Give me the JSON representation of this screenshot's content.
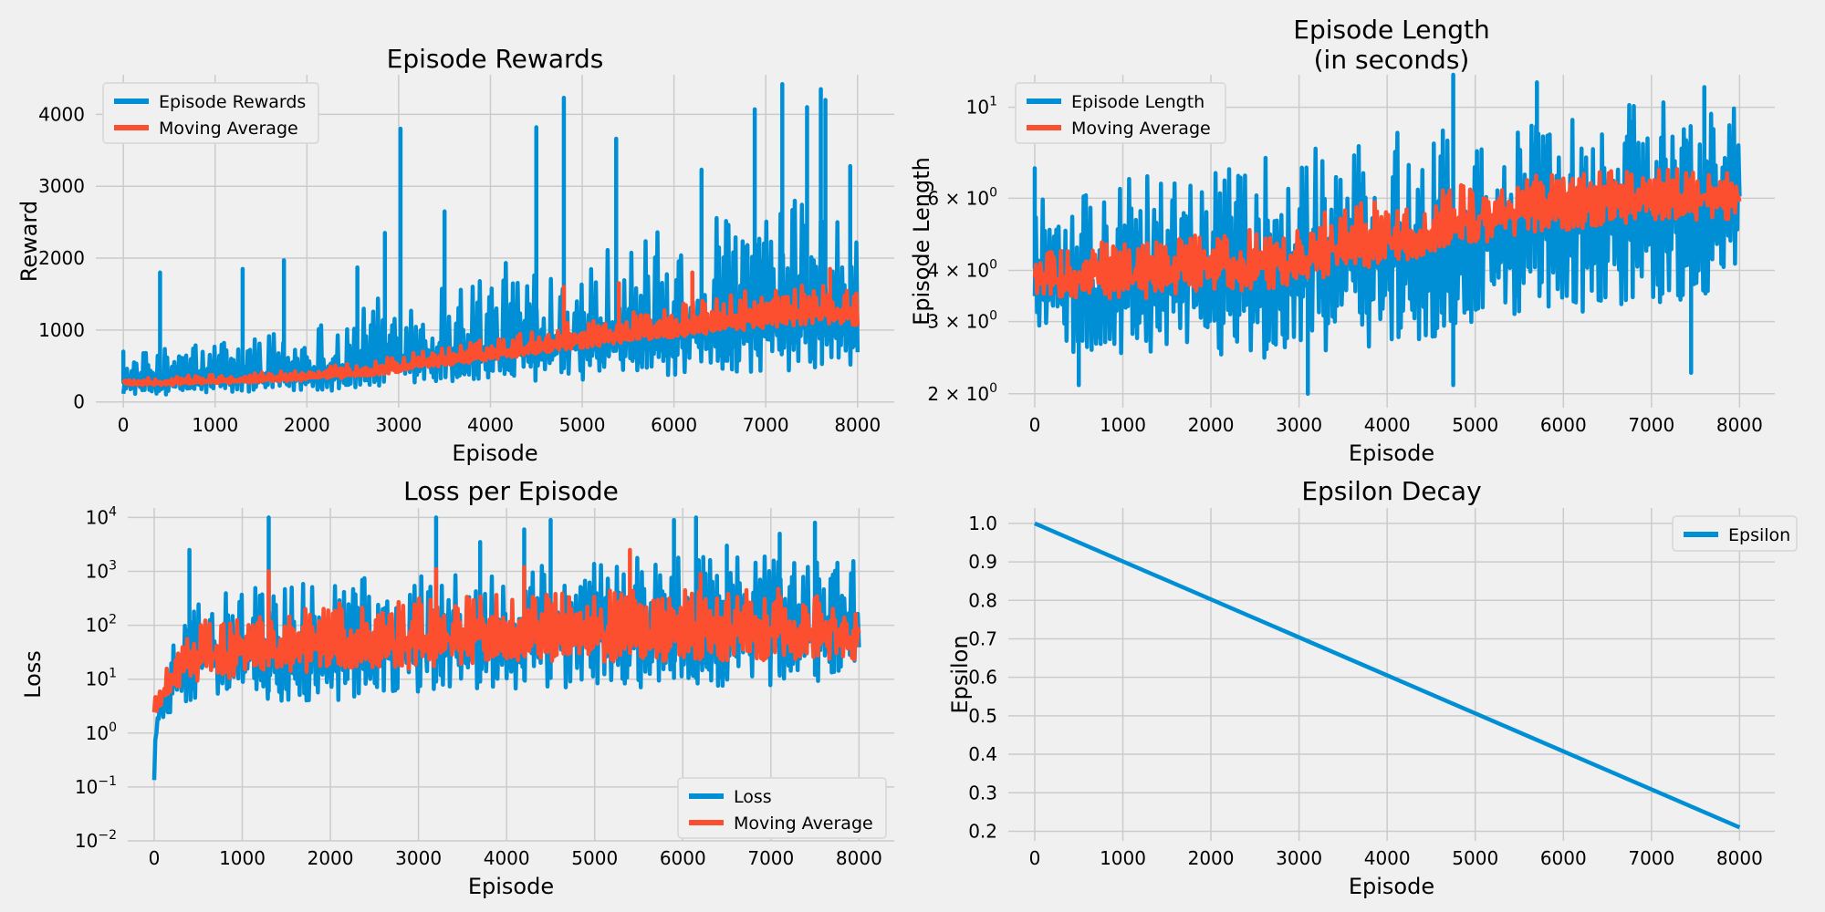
{
  "chart_data": [
    {
      "id": "rewards",
      "type": "line",
      "title": "Episode Rewards",
      "xlabel": "Episode",
      "ylabel": "Reward",
      "xlim": [
        -300,
        8400
      ],
      "ylim": [
        -80,
        4550
      ],
      "yscale": "linear",
      "xticks": [
        0,
        1000,
        2000,
        3000,
        4000,
        5000,
        6000,
        7000,
        8000
      ],
      "xtick_labels": [
        "0",
        "1000",
        "2000",
        "3000",
        "4000",
        "5000",
        "6000",
        "7000",
        "8000"
      ],
      "yticks": [
        0,
        1000,
        2000,
        3000,
        4000
      ],
      "ytick_labels": [
        "0",
        "1000",
        "2000",
        "3000",
        "4000"
      ],
      "legend_position": "top-left",
      "series": [
        {
          "name": "Episode Rewards",
          "color": "#008fd5",
          "x": [
            0,
            400,
            800,
            1200,
            1600,
            2000,
            2400,
            2800,
            3200,
            3600,
            4000,
            4400,
            4800,
            5200,
            5600,
            6000,
            6400,
            6800,
            7200,
            7600,
            8000
          ],
          "low": [
            110,
            100,
            110,
            120,
            130,
            140,
            160,
            180,
            210,
            230,
            260,
            280,
            300,
            320,
            340,
            360,
            390,
            410,
            430,
            450,
            480
          ],
          "high": [
            650,
            750,
            850,
            900,
            1000,
            1100,
            1250,
            1500,
            1650,
            1800,
            1900,
            2000,
            2150,
            2200,
            2300,
            2450,
            2600,
            2700,
            2800,
            2900,
            2300
          ],
          "spikes": [
            [
              0,
              700
            ],
            [
              400,
              1800
            ],
            [
              1300,
              1850
            ],
            [
              1750,
              1970
            ],
            [
              2550,
              1870
            ],
            [
              2850,
              2350
            ],
            [
              3020,
              3800
            ],
            [
              3500,
              2650
            ],
            [
              4500,
              3820
            ],
            [
              4800,
              4230
            ],
            [
              5370,
              3660
            ],
            [
              6300,
              3230
            ],
            [
              6880,
              4070
            ],
            [
              7180,
              4420
            ],
            [
              7450,
              4100
            ],
            [
              7600,
              4350
            ],
            [
              7650,
              4200
            ],
            [
              7920,
              3280
            ]
          ]
        },
        {
          "name": "Moving Average",
          "color": "#fc4f30",
          "x": [
            0,
            400,
            800,
            1200,
            1600,
            2000,
            2400,
            2800,
            3200,
            3600,
            4000,
            4400,
            4800,
            5200,
            5600,
            6000,
            6400,
            6800,
            7200,
            7600,
            8000
          ],
          "low": [
            240,
            230,
            250,
            260,
            280,
            300,
            330,
            380,
            450,
            520,
            580,
            650,
            720,
            780,
            850,
            900,
            950,
            1000,
            1050,
            1100,
            1050
          ],
          "high": [
            330,
            350,
            380,
            400,
            430,
            470,
            520,
            600,
            700,
            800,
            880,
            980,
            1100,
            1200,
            1280,
            1350,
            1450,
            1550,
            1600,
            1650,
            1600
          ],
          "spikes": [
            [
              4800,
              1600
            ],
            [
              5400,
              1650
            ],
            [
              6200,
              1800
            ],
            [
              7700,
              1850
            ]
          ]
        }
      ]
    },
    {
      "id": "length",
      "type": "line",
      "title": "Episode Length",
      "title2": "(in seconds)",
      "xlabel": "Episode",
      "ylabel": "Episode Length",
      "xlim": [
        -300,
        8400
      ],
      "ylim": [
        1.85,
        12.0
      ],
      "yscale": "log",
      "xticks": [
        0,
        1000,
        2000,
        3000,
        4000,
        5000,
        6000,
        7000,
        8000
      ],
      "xtick_labels": [
        "0",
        "1000",
        "2000",
        "3000",
        "4000",
        "5000",
        "6000",
        "7000",
        "8000"
      ],
      "yticks": [
        2,
        3,
        4,
        6,
        10
      ],
      "ytick_labels": [
        {
          "base": "2 × 10",
          "exp": "0"
        },
        {
          "base": "3 × 10",
          "exp": "0"
        },
        {
          "base": "4 × 10",
          "exp": "0"
        },
        {
          "base": "6 × 10",
          "exp": "0"
        },
        {
          "base": "10",
          "exp": "1"
        }
      ],
      "legend_position": "top-left",
      "series": [
        {
          "name": "Episode Length",
          "color": "#008fd5",
          "x": [
            0,
            400,
            800,
            1200,
            1600,
            2000,
            2400,
            2800,
            3200,
            3600,
            4000,
            4400,
            4800,
            5200,
            5600,
            6000,
            6400,
            6800,
            7200,
            7600,
            8000
          ],
          "low": [
            2.7,
            2.5,
            2.5,
            2.5,
            2.6,
            2.5,
            2.4,
            2.4,
            2.5,
            2.6,
            2.6,
            2.7,
            2.8,
            2.9,
            3.0,
            3.0,
            3.1,
            3.2,
            3.3,
            3.4,
            4.2
          ],
          "high": [
            6.5,
            6.0,
            6.5,
            6.8,
            7.0,
            7.0,
            7.3,
            7.8,
            8.2,
            8.5,
            8.7,
            9.0,
            9.3,
            9.5,
            9.8,
            10.0,
            10.2,
            10.5,
            10.5,
            10.3,
            10.0
          ],
          "spikes": [
            [
              0,
              7.1
            ],
            [
              500,
              2.1
            ],
            [
              3100,
              2.0
            ],
            [
              4750,
              12.0
            ],
            [
              4750,
              2.1
            ],
            [
              5700,
              11.5
            ],
            [
              7450,
              2.25
            ],
            [
              7600,
              11.2
            ]
          ]
        },
        {
          "name": "Moving Average",
          "color": "#fc4f30",
          "x": [
            0,
            400,
            800,
            1200,
            1600,
            2000,
            2400,
            2800,
            3200,
            3600,
            4000,
            4400,
            4800,
            5200,
            5600,
            6000,
            6400,
            6800,
            7200,
            7600,
            8000
          ],
          "low": [
            3.5,
            3.4,
            3.4,
            3.4,
            3.5,
            3.5,
            3.5,
            3.6,
            3.8,
            4.0,
            4.1,
            4.3,
            4.5,
            4.7,
            4.9,
            5.0,
            5.1,
            5.2,
            5.3,
            5.3,
            5.3
          ],
          "high": [
            4.4,
            4.6,
            4.7,
            4.8,
            4.9,
            5.0,
            5.1,
            5.3,
            5.6,
            5.8,
            6.0,
            6.2,
            6.5,
            6.7,
            6.9,
            7.0,
            7.1,
            7.2,
            7.3,
            7.3,
            7.3
          ],
          "spikes": []
        }
      ]
    },
    {
      "id": "loss",
      "type": "line",
      "title": "Loss per Episode",
      "xlabel": "Episode",
      "ylabel": "Loss",
      "xlim": [
        -300,
        8400
      ],
      "ylim": [
        0.01,
        15000
      ],
      "yscale": "log",
      "xticks": [
        0,
        1000,
        2000,
        3000,
        4000,
        5000,
        6000,
        7000,
        8000
      ],
      "xtick_labels": [
        "0",
        "1000",
        "2000",
        "3000",
        "4000",
        "5000",
        "6000",
        "7000",
        "8000"
      ],
      "yticks": [
        0.01,
        0.1,
        1,
        10,
        100,
        1000,
        10000
      ],
      "ytick_labels": [
        {
          "base": "10",
          "exp": "−2"
        },
        {
          "base": "10",
          "exp": "−1"
        },
        {
          "base": "10",
          "exp": "0"
        },
        {
          "base": "10",
          "exp": "1"
        },
        {
          "base": "10",
          "exp": "2"
        },
        {
          "base": "10",
          "exp": "3"
        },
        {
          "base": "10",
          "exp": "4"
        }
      ],
      "legend_position": "bottom-right",
      "series": [
        {
          "name": "Loss",
          "color": "#008fd5",
          "x": [
            0,
            100,
            250,
            400,
            800,
            1200,
            1600,
            2000,
            2400,
            2800,
            3200,
            3600,
            4000,
            4400,
            4800,
            5200,
            5600,
            6000,
            6400,
            6800,
            7200,
            7600,
            8000
          ],
          "low": [
            0.02,
            1.5,
            3,
            4,
            4,
            4,
            4,
            4,
            4,
            5,
            6,
            6,
            6,
            7,
            7,
            7,
            7,
            7,
            7,
            7,
            8,
            8,
            10
          ],
          "high": [
            5,
            20,
            60,
            200,
            500,
            600,
            700,
            800,
            900,
            1000,
            1200,
            1300,
            1400,
            1500,
            1700,
            1800,
            1900,
            2000,
            2000,
            2000,
            1900,
            1800,
            1500
          ],
          "spikes": [
            [
              400,
              2500
            ],
            [
              1300,
              10000
            ],
            [
              3200,
              10000
            ],
            [
              3700,
              3500
            ],
            [
              4200,
              6000
            ],
            [
              4500,
              9000
            ],
            [
              5900,
              9000
            ],
            [
              6150,
              10000
            ],
            [
              6500,
              3000
            ],
            [
              7100,
              5000
            ],
            [
              7500,
              8000
            ]
          ]
        },
        {
          "name": "Moving Average",
          "color": "#fc4f30",
          "x": [
            0,
            100,
            250,
            400,
            800,
            1200,
            1600,
            2000,
            2400,
            2800,
            3200,
            3600,
            4000,
            4400,
            4800,
            5200,
            5600,
            6000,
            6400,
            6800,
            7200,
            7600,
            8000
          ],
          "low": [
            2,
            3,
            6,
            8,
            10,
            12,
            12,
            13,
            14,
            15,
            17,
            18,
            18,
            19,
            20,
            20,
            21,
            21,
            22,
            22,
            22,
            22,
            20
          ],
          "high": [
            5,
            10,
            40,
            100,
            150,
            200,
            220,
            250,
            280,
            300,
            330,
            350,
            380,
            400,
            420,
            440,
            450,
            460,
            470,
            480,
            480,
            450,
            400
          ],
          "spikes": [
            [
              1300,
              1000
            ],
            [
              3200,
              1100
            ],
            [
              4200,
              1200
            ],
            [
              5400,
              2500
            ],
            [
              6200,
              900
            ]
          ]
        }
      ]
    },
    {
      "id": "epsilon",
      "type": "line",
      "title": "Epsilon Decay",
      "xlabel": "Episode",
      "ylabel": "Epsilon",
      "xlim": [
        -300,
        8400
      ],
      "ylim": [
        0.175,
        1.04
      ],
      "yscale": "linear",
      "xticks": [
        0,
        1000,
        2000,
        3000,
        4000,
        5000,
        6000,
        7000,
        8000
      ],
      "xtick_labels": [
        "0",
        "1000",
        "2000",
        "3000",
        "4000",
        "5000",
        "6000",
        "7000",
        "8000"
      ],
      "yticks": [
        0.2,
        0.3,
        0.4,
        0.5,
        0.6,
        0.7,
        0.8,
        0.9,
        1.0
      ],
      "ytick_labels": [
        "0.2",
        "0.3",
        "0.4",
        "0.5",
        "0.6",
        "0.7",
        "0.8",
        "0.9",
        "1.0"
      ],
      "legend_position": "top-right",
      "series": [
        {
          "name": "Epsilon",
          "color": "#008fd5",
          "x": [
            0,
            8000
          ],
          "y": [
            1.0,
            0.21
          ]
        }
      ]
    }
  ]
}
